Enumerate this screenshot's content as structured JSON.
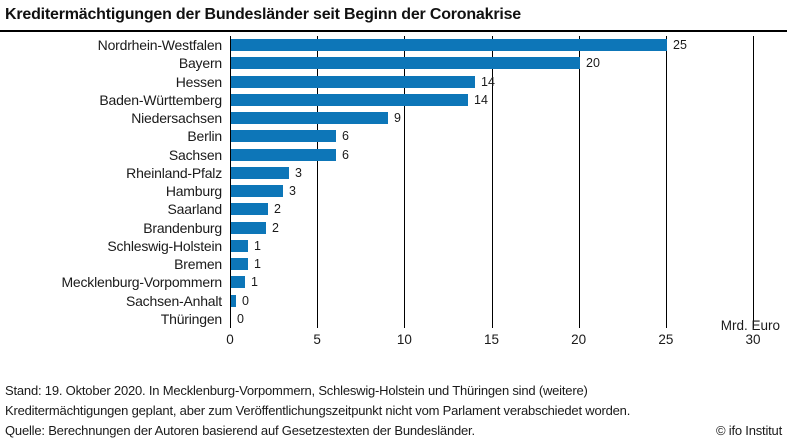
{
  "chart_data": {
    "type": "bar",
    "orientation": "horizontal",
    "title": "Kreditermächtigungen der Bundesländer seit Beginn der Coronakrise",
    "categories": [
      "Nordrhein-Westfalen",
      "Bayern",
      "Hessen",
      "Baden-Württemberg",
      "Niedersachsen",
      "Berlin",
      "Sachsen",
      "Rheinland-Pfalz",
      "Hamburg",
      "Saarland",
      "Brandenburg",
      "Schleswig-Holstein",
      "Bremen",
      "Mecklenburg-Vorpommern",
      "Sachsen-Anhalt",
      "Thüringen"
    ],
    "values": [
      25,
      20,
      14,
      14,
      9,
      6,
      6,
      3,
      3,
      2,
      2,
      1,
      1,
      1,
      0,
      0
    ],
    "bar_lengths": [
      25,
      20,
      14,
      13.6,
      9,
      6,
      6,
      3.3,
      3,
      2.1,
      2,
      1,
      1,
      0.8,
      0.3,
      0
    ],
    "x_ticks": [
      0,
      5,
      10,
      15,
      20,
      25,
      30
    ],
    "xlim": [
      0,
      30
    ],
    "x_unit_label": "Mrd. Euro",
    "bar_color": "#0d76b8",
    "gridline_color": "#000000",
    "grid": "vertical-on",
    "legend": "none"
  },
  "footer": {
    "line1": "Stand: 19. Oktober 2020. In Mecklenburg-Vorpommern, Schleswig-Holstein und Thüringen sind (weitere)",
    "line2": "Kreditermächtigungen geplant, aber zum Veröffentlichungszeitpunkt nicht vom Parlament verabschiedet worden.",
    "line3": "Quelle: Berechnungen der Autoren basierend auf Gesetzestexten der Bundesländer.",
    "credit": "© ifo Institut"
  }
}
